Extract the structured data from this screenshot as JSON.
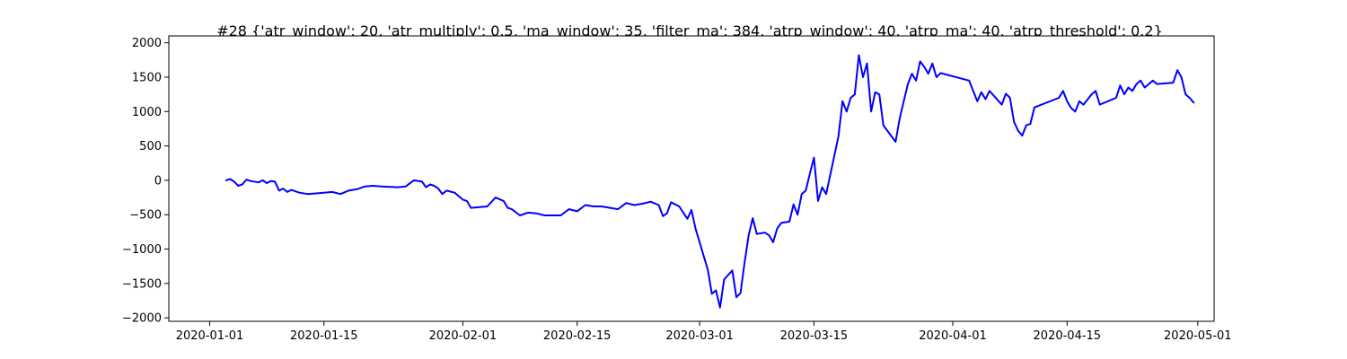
{
  "chart_data": {
    "type": "line",
    "title": "#28 {'atr_window': 20, 'atr_multiply': 0.5, 'ma_window': 35, 'filter_ma': 384, 'atrp_window': 40, 'atrp_ma': 40, 'atrp_threshold': 0.2}",
    "xlabel": "",
    "ylabel": "",
    "xlim": [
      "2019-12-27",
      "2020-05-03"
    ],
    "ylim": [
      -2050,
      2100
    ],
    "grid": false,
    "legend": "none",
    "x_ticks": [
      "2020-01-01",
      "2020-01-15",
      "2020-02-01",
      "2020-02-15",
      "2020-03-01",
      "2020-03-15",
      "2020-04-01",
      "2020-04-15",
      "2020-05-01"
    ],
    "y_ticks": [
      -2000,
      -1500,
      -1000,
      -500,
      0,
      500,
      1000,
      1500,
      2000
    ],
    "series": [
      {
        "color": "#0000ff",
        "points": [
          [
            "2020-01-03",
            0
          ],
          [
            "2020-01-03T12:00",
            20
          ],
          [
            "2020-01-04",
            -20
          ],
          [
            "2020-01-04T12:00",
            -80
          ],
          [
            "2020-01-05",
            -60
          ],
          [
            "2020-01-05T12:00",
            10
          ],
          [
            "2020-01-06",
            -10
          ],
          [
            "2020-01-07",
            -30
          ],
          [
            "2020-01-07T12:00",
            0
          ],
          [
            "2020-01-08",
            -40
          ],
          [
            "2020-01-08T12:00",
            -10
          ],
          [
            "2020-01-09",
            -20
          ],
          [
            "2020-01-09T12:00",
            -150
          ],
          [
            "2020-01-10",
            -120
          ],
          [
            "2020-01-10T12:00",
            -170
          ],
          [
            "2020-01-11",
            -140
          ],
          [
            "2020-01-12",
            -180
          ],
          [
            "2020-01-13",
            -200
          ],
          [
            "2020-01-15",
            -180
          ],
          [
            "2020-01-16",
            -170
          ],
          [
            "2020-01-17",
            -200
          ],
          [
            "2020-01-18",
            -150
          ],
          [
            "2020-01-19",
            -130
          ],
          [
            "2020-01-20",
            -90
          ],
          [
            "2020-01-21",
            -80
          ],
          [
            "2020-01-22",
            -90
          ],
          [
            "2020-01-24",
            -100
          ],
          [
            "2020-01-25",
            -90
          ],
          [
            "2020-01-26",
            0
          ],
          [
            "2020-01-27",
            -20
          ],
          [
            "2020-01-27T12:00",
            -100
          ],
          [
            "2020-01-28",
            -60
          ],
          [
            "2020-01-28T12:00",
            -80
          ],
          [
            "2020-01-29",
            -120
          ],
          [
            "2020-01-29T12:00",
            -200
          ],
          [
            "2020-01-30",
            -150
          ],
          [
            "2020-01-31",
            -180
          ],
          [
            "2020-02-01",
            -280
          ],
          [
            "2020-02-01T12:00",
            -300
          ],
          [
            "2020-02-02",
            -400
          ],
          [
            "2020-02-04",
            -380
          ],
          [
            "2020-02-05",
            -250
          ],
          [
            "2020-02-06",
            -300
          ],
          [
            "2020-02-06T12:00",
            -400
          ],
          [
            "2020-02-07",
            -420
          ],
          [
            "2020-02-08",
            -510
          ],
          [
            "2020-02-09",
            -470
          ],
          [
            "2020-02-10",
            -480
          ],
          [
            "2020-02-11",
            -510
          ],
          [
            "2020-02-13",
            -510
          ],
          [
            "2020-02-14",
            -420
          ],
          [
            "2020-02-15",
            -450
          ],
          [
            "2020-02-16",
            -360
          ],
          [
            "2020-02-17",
            -380
          ],
          [
            "2020-02-18",
            -380
          ],
          [
            "2020-02-20",
            -420
          ],
          [
            "2020-02-21",
            -330
          ],
          [
            "2020-02-22",
            -360
          ],
          [
            "2020-02-23",
            -340
          ],
          [
            "2020-02-24",
            -310
          ],
          [
            "2020-02-25",
            -360
          ],
          [
            "2020-02-25T12:00",
            -520
          ],
          [
            "2020-02-26",
            -480
          ],
          [
            "2020-02-26T12:00",
            -320
          ],
          [
            "2020-02-27",
            -350
          ],
          [
            "2020-02-27T12:00",
            -380
          ],
          [
            "2020-02-28",
            -470
          ],
          [
            "2020-02-28T12:00",
            -560
          ],
          [
            "2020-02-29",
            -430
          ],
          [
            "2020-02-29T12:00",
            -700
          ],
          [
            "2020-03-01",
            -900
          ],
          [
            "2020-03-01T12:00",
            -1100
          ],
          [
            "2020-03-02",
            -1300
          ],
          [
            "2020-03-02T12:00",
            -1650
          ],
          [
            "2020-03-03",
            -1600
          ],
          [
            "2020-03-03T12:00",
            -1850
          ],
          [
            "2020-03-04",
            -1440
          ],
          [
            "2020-03-05",
            -1310
          ],
          [
            "2020-03-05T12:00",
            -1700
          ],
          [
            "2020-03-06",
            -1640
          ],
          [
            "2020-03-06T12:00",
            -1200
          ],
          [
            "2020-03-07",
            -800
          ],
          [
            "2020-03-07T12:00",
            -550
          ],
          [
            "2020-03-08",
            -780
          ],
          [
            "2020-03-09",
            -760
          ],
          [
            "2020-03-09T12:00",
            -800
          ],
          [
            "2020-03-10",
            -900
          ],
          [
            "2020-03-10T12:00",
            -700
          ],
          [
            "2020-03-11",
            -620
          ],
          [
            "2020-03-12",
            -600
          ],
          [
            "2020-03-12T12:00",
            -350
          ],
          [
            "2020-03-13",
            -500
          ],
          [
            "2020-03-13T12:00",
            -200
          ],
          [
            "2020-03-14",
            -150
          ],
          [
            "2020-03-14T12:00",
            100
          ],
          [
            "2020-03-15",
            330
          ],
          [
            "2020-03-15T12:00",
            -300
          ],
          [
            "2020-03-16",
            -100
          ],
          [
            "2020-03-16T12:00",
            -200
          ],
          [
            "2020-03-18",
            640
          ],
          [
            "2020-03-18T12:00",
            1150
          ],
          [
            "2020-03-19",
            1000
          ],
          [
            "2020-03-19T12:00",
            1200
          ],
          [
            "2020-03-20",
            1250
          ],
          [
            "2020-03-20T12:00",
            1820
          ],
          [
            "2020-03-21",
            1500
          ],
          [
            "2020-03-21T12:00",
            1700
          ],
          [
            "2020-03-22",
            1000
          ],
          [
            "2020-03-22T12:00",
            1280
          ],
          [
            "2020-03-23",
            1250
          ],
          [
            "2020-03-23T12:00",
            800
          ],
          [
            "2020-03-25",
            560
          ],
          [
            "2020-03-25T12:00",
            900
          ],
          [
            "2020-03-26",
            1150
          ],
          [
            "2020-03-26T12:00",
            1400
          ],
          [
            "2020-03-27",
            1550
          ],
          [
            "2020-03-27T12:00",
            1450
          ],
          [
            "2020-03-28",
            1730
          ],
          [
            "2020-03-28T12:00",
            1650
          ],
          [
            "2020-03-29",
            1550
          ],
          [
            "2020-03-29T12:00",
            1700
          ],
          [
            "2020-03-30",
            1500
          ],
          [
            "2020-03-30T12:00",
            1560
          ],
          [
            "2020-04-03",
            1450
          ],
          [
            "2020-04-03T12:00",
            1300
          ],
          [
            "2020-04-04",
            1150
          ],
          [
            "2020-04-04T12:00",
            1280
          ],
          [
            "2020-04-05",
            1180
          ],
          [
            "2020-04-05T12:00",
            1300
          ],
          [
            "2020-04-07",
            1100
          ],
          [
            "2020-04-07T12:00",
            1260
          ],
          [
            "2020-04-08",
            1200
          ],
          [
            "2020-04-08T12:00",
            850
          ],
          [
            "2020-04-09",
            720
          ],
          [
            "2020-04-09T12:00",
            650
          ],
          [
            "2020-04-10",
            800
          ],
          [
            "2020-04-10T12:00",
            820
          ],
          [
            "2020-04-11",
            1060
          ],
          [
            "2020-04-14",
            1200
          ],
          [
            "2020-04-14T12:00",
            1300
          ],
          [
            "2020-04-15",
            1150
          ],
          [
            "2020-04-15T12:00",
            1050
          ],
          [
            "2020-04-16",
            1000
          ],
          [
            "2020-04-16T12:00",
            1150
          ],
          [
            "2020-04-17",
            1100
          ],
          [
            "2020-04-18",
            1250
          ],
          [
            "2020-04-18T12:00",
            1300
          ],
          [
            "2020-04-19",
            1100
          ],
          [
            "2020-04-21",
            1200
          ],
          [
            "2020-04-21T12:00",
            1380
          ],
          [
            "2020-04-22",
            1250
          ],
          [
            "2020-04-22T12:00",
            1350
          ],
          [
            "2020-04-23",
            1300
          ],
          [
            "2020-04-23T12:00",
            1400
          ],
          [
            "2020-04-24",
            1450
          ],
          [
            "2020-04-24T12:00",
            1350
          ],
          [
            "2020-04-25",
            1400
          ],
          [
            "2020-04-25T12:00",
            1450
          ],
          [
            "2020-04-26",
            1400
          ],
          [
            "2020-04-28",
            1420
          ],
          [
            "2020-04-28T12:00",
            1600
          ],
          [
            "2020-04-29",
            1500
          ],
          [
            "2020-04-29T12:00",
            1250
          ],
          [
            "2020-04-30",
            1200
          ],
          [
            "2020-04-30T12:00",
            1130
          ]
        ]
      }
    ]
  }
}
